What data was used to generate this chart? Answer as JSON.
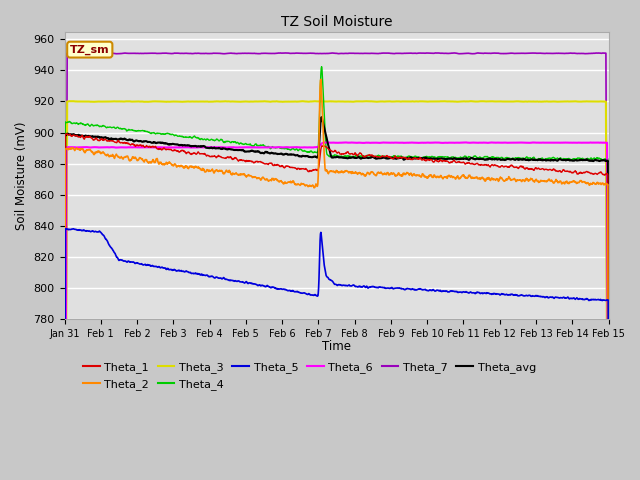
{
  "title": "TZ Soil Moisture",
  "xlabel": "Time",
  "ylabel": "Soil Moisture (mV)",
  "ylim": [
    780,
    965
  ],
  "yticks": [
    780,
    800,
    820,
    840,
    860,
    880,
    900,
    920,
    940,
    960
  ],
  "legend_label": "TZ_sm",
  "series_colors": {
    "Theta_1": "#dd0000",
    "Theta_2": "#ff8800",
    "Theta_3": "#dddd00",
    "Theta_4": "#00cc00",
    "Theta_5": "#0000dd",
    "Theta_6": "#ff00ff",
    "Theta_7": "#9900bb",
    "Theta_avg": "#000000"
  },
  "xtick_labels": [
    "Jan 31",
    "Feb 1",
    "Feb 2",
    "Feb 3",
    "Feb 4",
    "Feb 5",
    "Feb 6",
    "Feb 7",
    "Feb 8",
    "Feb 9",
    "Feb 10",
    "Feb 11",
    "Feb 12",
    "Feb 13",
    "Feb 14",
    "Feb 15"
  ],
  "n_days": 15,
  "n_pts": 1440
}
